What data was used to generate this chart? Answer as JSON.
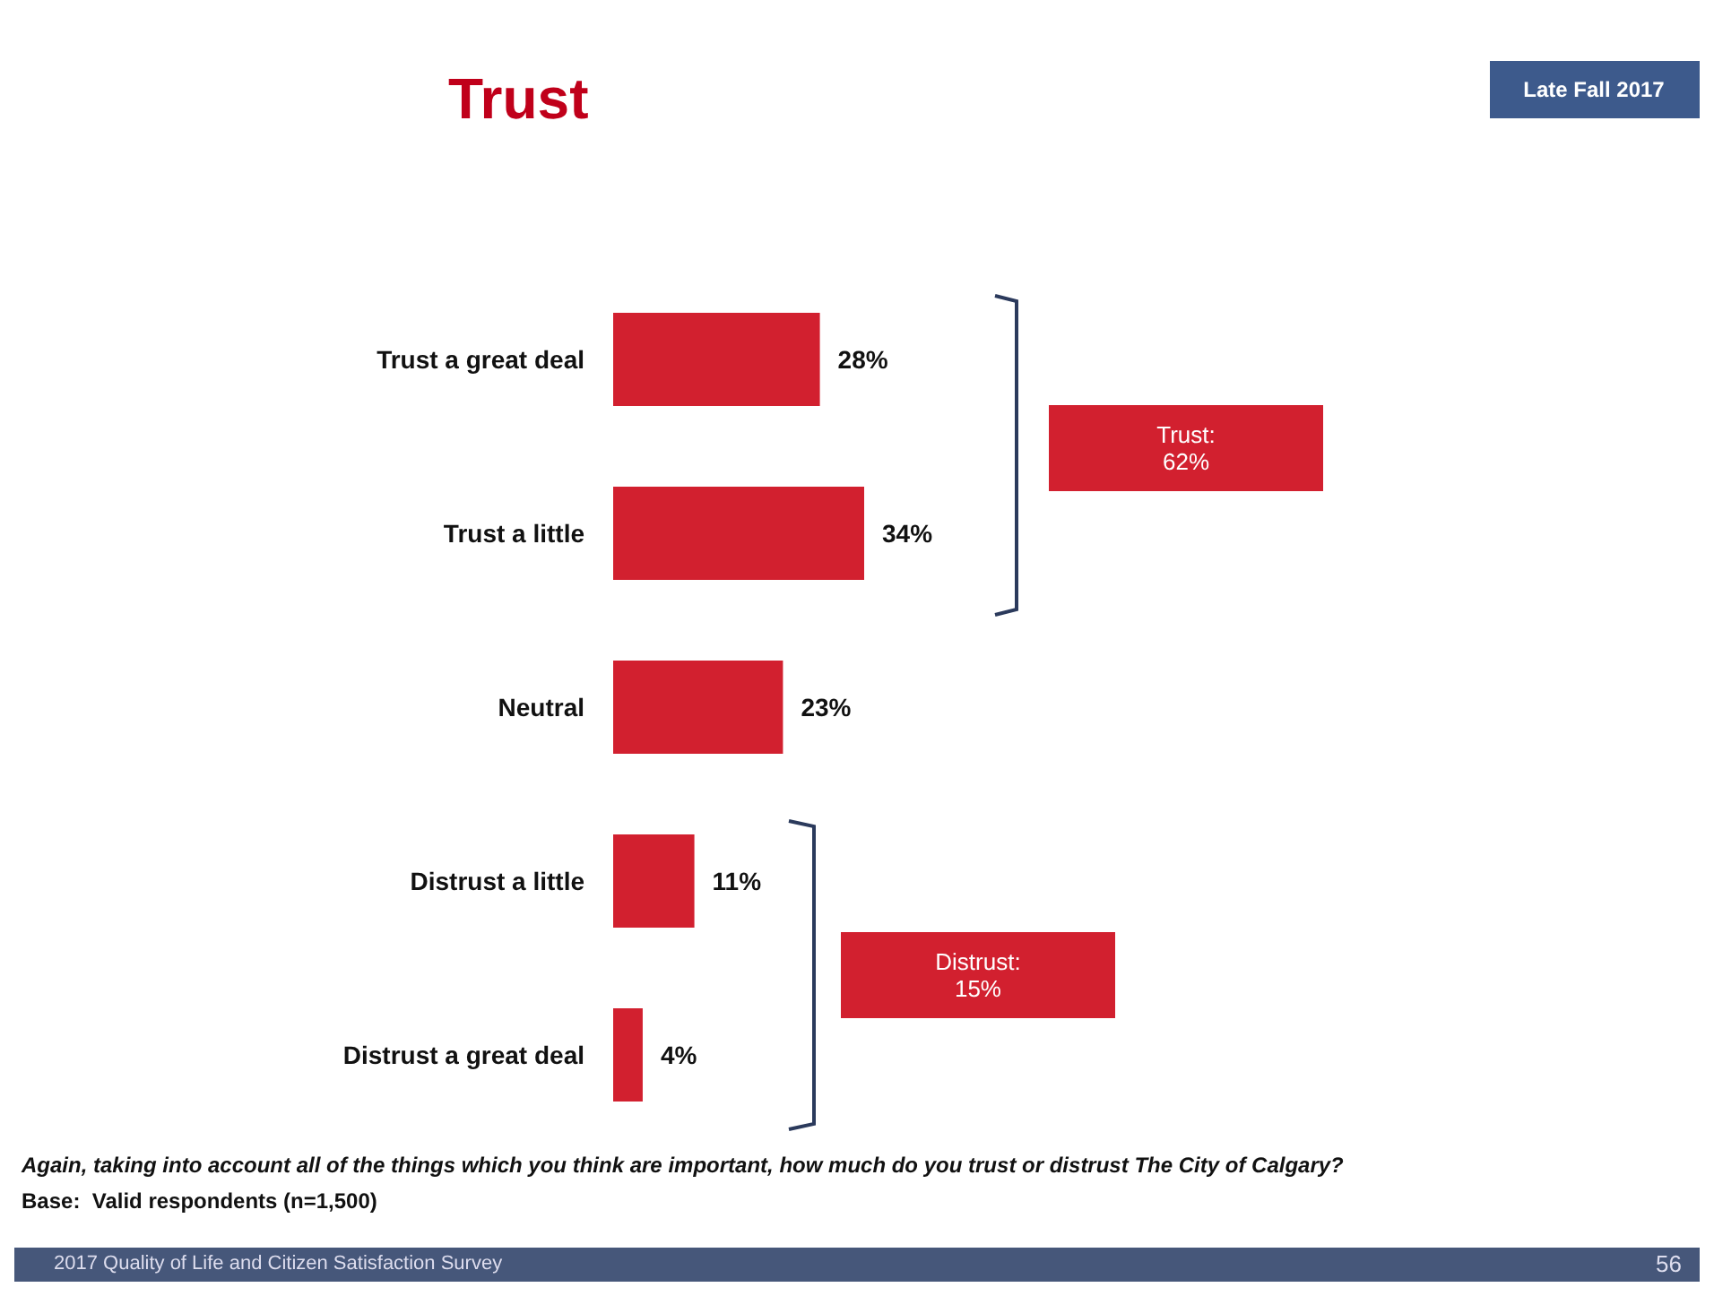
{
  "chart_data": {
    "type": "bar",
    "orientation": "horizontal",
    "title": "Trust",
    "categories": [
      "Trust a great deal",
      "Trust a little",
      "Neutral",
      "Distrust a little",
      "Distrust a great deal"
    ],
    "values": [
      28,
      34,
      23,
      11,
      4
    ],
    "value_labels": [
      "28%",
      "34%",
      "23%",
      "11%",
      "4%"
    ],
    "color": "#d2202f",
    "annotations": [
      "Late Fall 2017",
      "Trust:\n62%",
      "Distrust:\n15%",
      "Again, taking into account all of the things which you think are important, how much do you trust or distrust The City of Calgary?",
      "Base:  Valid respondents (n=1,500)",
      "2017 Quality of Life and Citizen Satisfaction Survey",
      "56"
    ]
  }
}
